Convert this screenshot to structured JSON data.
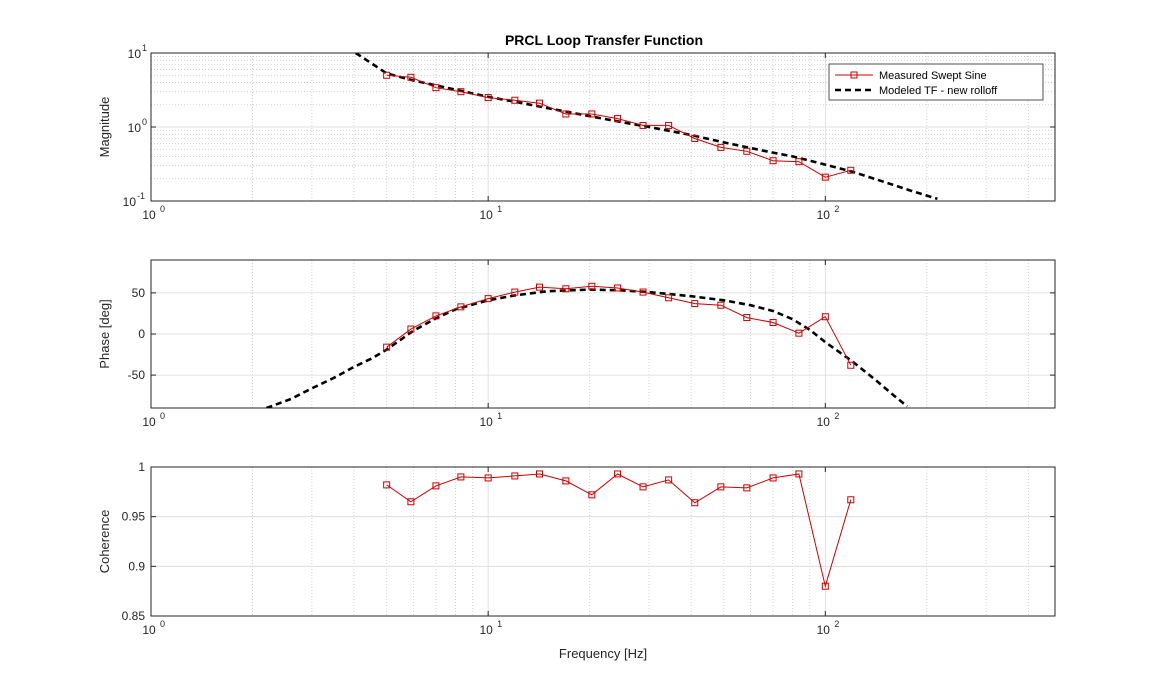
{
  "figure_title": "PRCL Loop Transfer Function",
  "chart_data": [
    {
      "type": "line",
      "panel": "magnitude",
      "title": "PRCL Loop Transfer Function",
      "xlabel": "",
      "ylabel": "Magnitude",
      "xscale": "log",
      "yscale": "log",
      "xlim": [
        1,
        480
      ],
      "ylim": [
        0.1,
        10
      ],
      "x_ticks": [
        1,
        10,
        100
      ],
      "y_ticks": [
        0.1,
        1,
        10
      ],
      "x_tick_labels": [
        {
          "base": "10",
          "exp": "0"
        },
        {
          "base": "10",
          "exp": "1"
        },
        {
          "base": "10",
          "exp": "2"
        }
      ],
      "y_tick_labels": [
        {
          "base": "10",
          "exp": "-1"
        },
        {
          "base": "10",
          "exp": "0"
        },
        {
          "base": "10",
          "exp": "1"
        }
      ],
      "grid": true,
      "legend": "top-right",
      "series": [
        {
          "name": "Measured Swept Sine",
          "style": "marker-line",
          "color": "#cc0000",
          "x": [
            5.0,
            5.9,
            7.0,
            8.3,
            10.0,
            12.0,
            14.2,
            17.0,
            20.3,
            24.2,
            28.8,
            34.3,
            41.0,
            49.0,
            58.5,
            70.0,
            83.5,
            100.0,
            119.0
          ],
          "y": [
            5.0,
            4.7,
            3.4,
            3.0,
            2.5,
            2.3,
            2.1,
            1.5,
            1.5,
            1.3,
            1.05,
            1.05,
            0.7,
            0.53,
            0.47,
            0.35,
            0.34,
            0.21,
            0.26
          ]
        },
        {
          "name": "Modeled TF - new rolloff",
          "style": "dashed",
          "color": "#000000",
          "x": [
            4.05,
            5,
            6,
            7,
            8,
            10,
            12,
            15,
            20,
            25,
            30,
            40,
            50,
            60,
            70,
            80,
            90,
            100,
            120,
            150,
            180,
            215
          ],
          "y": [
            10.0,
            5.3,
            4.25,
            3.65,
            3.2,
            2.55,
            2.2,
            1.8,
            1.4,
            1.16,
            1.0,
            0.78,
            0.62,
            0.52,
            0.45,
            0.4,
            0.35,
            0.31,
            0.25,
            0.18,
            0.137,
            0.107
          ]
        }
      ]
    },
    {
      "type": "line",
      "panel": "phase",
      "title": "",
      "xlabel": "",
      "ylabel": "Phase [deg]",
      "xscale": "log",
      "yscale": "linear",
      "xlim": [
        1,
        480
      ],
      "ylim": [
        -90,
        90
      ],
      "x_ticks": [
        1,
        10,
        100
      ],
      "y_ticks": [
        -50,
        0,
        50
      ],
      "x_tick_labels": [
        {
          "base": "10",
          "exp": "0"
        },
        {
          "base": "10",
          "exp": "1"
        },
        {
          "base": "10",
          "exp": "2"
        }
      ],
      "y_tick_labels": [
        "-50",
        "0",
        "50"
      ],
      "grid": true,
      "series": [
        {
          "name": "Measured Swept Sine",
          "style": "marker-line",
          "color": "#cc0000",
          "x": [
            5.0,
            5.9,
            7.0,
            8.3,
            10.0,
            12.0,
            14.2,
            17.0,
            20.3,
            24.2,
            28.8,
            34.3,
            41.0,
            49.0,
            58.5,
            70.0,
            83.5,
            100.0,
            119.0
          ],
          "y": [
            -16,
            6,
            22,
            33,
            43,
            51,
            57,
            55,
            58,
            56,
            51,
            44,
            37,
            35,
            20,
            14,
            1,
            21,
            -38
          ]
        },
        {
          "name": "Modeled TF - new rolloff",
          "style": "dashed",
          "color": "#000000",
          "x": [
            2.2,
            2.6,
            3,
            3.5,
            4,
            4.5,
            5,
            6,
            7,
            8,
            10,
            12,
            15,
            20,
            25,
            30,
            40,
            50,
            60,
            70,
            80,
            90,
            100,
            110,
            120,
            140,
            160,
            175
          ],
          "y": [
            -90,
            -79,
            -66,
            -53,
            -40,
            -30,
            -19,
            4,
            19,
            30,
            41,
            47,
            52,
            54,
            53,
            51,
            46,
            41,
            35,
            28,
            18,
            5,
            -10,
            -22,
            -33,
            -55,
            -75,
            -88
          ]
        }
      ]
    },
    {
      "type": "line",
      "panel": "coherence",
      "title": "",
      "xlabel": "Frequency [Hz]",
      "ylabel": "Coherence",
      "xscale": "log",
      "yscale": "linear",
      "xlim": [
        1,
        480
      ],
      "ylim": [
        0.85,
        1
      ],
      "x_ticks": [
        1,
        10,
        100
      ],
      "y_ticks": [
        0.85,
        0.9,
        0.95,
        1
      ],
      "x_tick_labels": [
        {
          "base": "10",
          "exp": "0"
        },
        {
          "base": "10",
          "exp": "1"
        },
        {
          "base": "10",
          "exp": "2"
        }
      ],
      "y_tick_labels": [
        "0.85",
        "0.9",
        "0.95",
        "1"
      ],
      "grid": true,
      "series": [
        {
          "name": "Measured Swept Sine",
          "style": "marker-line",
          "color": "#cc0000",
          "x": [
            5.0,
            5.9,
            7.0,
            8.3,
            10.0,
            12.0,
            14.2,
            17.0,
            20.3,
            24.2,
            28.8,
            34.3,
            41.0,
            49.0,
            58.5,
            70.0,
            83.5,
            100.0,
            119.0
          ],
          "y": [
            0.982,
            0.965,
            0.981,
            0.99,
            0.989,
            0.991,
            0.993,
            0.986,
            0.972,
            0.993,
            0.98,
            0.987,
            0.964,
            0.98,
            0.979,
            0.989,
            0.993,
            0.88,
            0.967
          ]
        }
      ]
    }
  ]
}
